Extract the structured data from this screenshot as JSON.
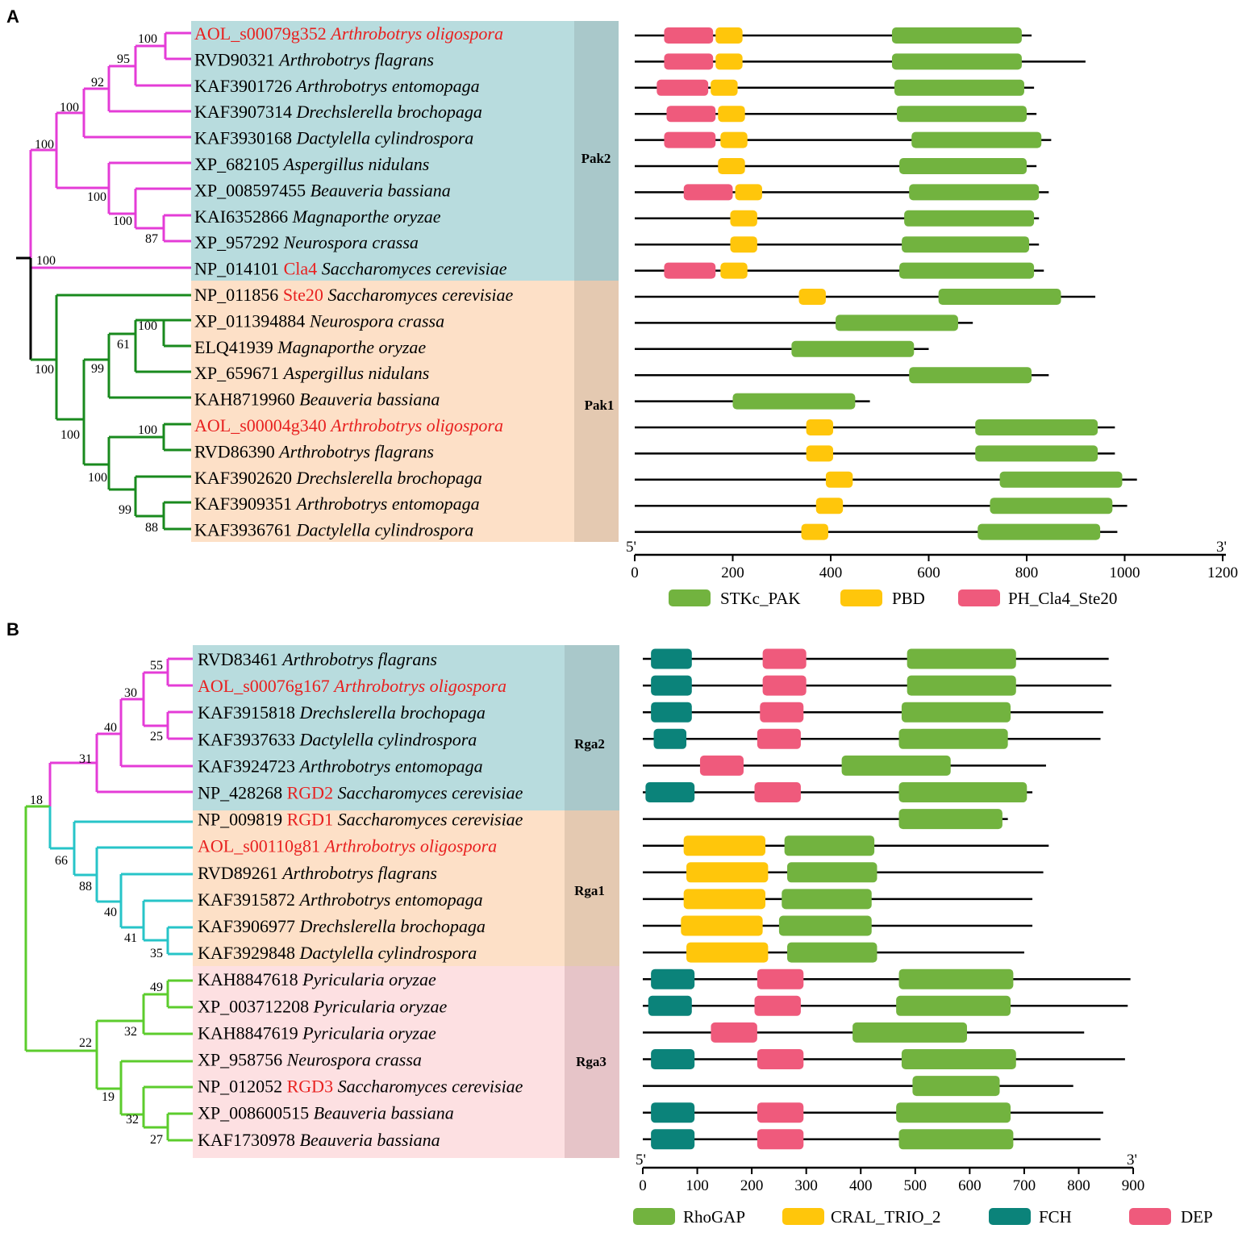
{
  "colors": {
    "STKc_PAK": "#72b33f",
    "PBD": "#ffc60b",
    "PH_Cla4_Ste20": "#ef5a7c",
    "RhoGAP": "#72b33f",
    "CRAL_TRIO_2": "#ffc60b",
    "FCH": "#0b837a",
    "DEP": "#ef5a7c",
    "clade_magenta": "#e43cd7",
    "clade_darkgreen": "#198a1e",
    "clade_cyan": "#27c4c8",
    "clade_lime": "#5ccc2d",
    "bg_teal": "#b8dcde",
    "bg_peach": "#fde0c7",
    "bg_pink": "#fde0e2"
  },
  "panelA": {
    "letter": "A",
    "groups": [
      "Pak2",
      "Pak1"
    ],
    "axis": {
      "start": "5'",
      "end": "3'",
      "min": 0,
      "max": 1200,
      "ticks": [
        0,
        200,
        400,
        600,
        800,
        1000,
        1200
      ]
    },
    "legend": [
      "STKc_PAK",
      "PBD",
      "PH_Cla4_Ste20"
    ],
    "bootstrap": [
      "100",
      "95",
      "92",
      "100",
      "100",
      "100",
      "100",
      "87",
      "100",
      "100",
      "61",
      "99",
      "100",
      "100",
      "100",
      "100",
      "99",
      "88"
    ],
    "proteins": [
      {
        "id": "AOL_s00079g352",
        "gene": "",
        "species": "Arthrobotrys oligospora",
        "red": true,
        "length": 810,
        "domains": [
          {
            "t": "PH_Cla4_Ste20",
            "s": 60,
            "e": 160
          },
          {
            "t": "PBD",
            "s": 165,
            "e": 220
          },
          {
            "t": "STKc_PAK",
            "s": 525,
            "e": 790
          }
        ]
      },
      {
        "id": "RVD90321",
        "gene": "",
        "species": "Arthrobotrys flagrans",
        "red": false,
        "length": 920,
        "domains": [
          {
            "t": "PH_Cla4_Ste20",
            "s": 60,
            "e": 160
          },
          {
            "t": "PBD",
            "s": 165,
            "e": 220
          },
          {
            "t": "STKc_PAK",
            "s": 525,
            "e": 790
          }
        ]
      },
      {
        "id": "KAF3901726",
        "gene": "",
        "species": "Arthrobotrys entomopaga",
        "red": false,
        "length": 815,
        "domains": [
          {
            "t": "PH_Cla4_Ste20",
            "s": 45,
            "e": 150
          },
          {
            "t": "PBD",
            "s": 155,
            "e": 210
          },
          {
            "t": "STKc_PAK",
            "s": 530,
            "e": 795
          }
        ]
      },
      {
        "id": "KAF3907314",
        "gene": "",
        "species": "Drechslerella brochopaga",
        "red": false,
        "length": 820,
        "domains": [
          {
            "t": "PH_Cla4_Ste20",
            "s": 65,
            "e": 165
          },
          {
            "t": "PBD",
            "s": 170,
            "e": 225
          },
          {
            "t": "STKc_PAK",
            "s": 535,
            "e": 800
          }
        ]
      },
      {
        "id": "KAF3930168",
        "gene": "",
        "species": "Dactylella cylindrospora",
        "red": false,
        "length": 850,
        "domains": [
          {
            "t": "PH_Cla4_Ste20",
            "s": 60,
            "e": 165
          },
          {
            "t": "PBD",
            "s": 175,
            "e": 230
          },
          {
            "t": "STKc_PAK",
            "s": 565,
            "e": 830
          }
        ]
      },
      {
        "id": "XP_682105",
        "gene": "",
        "species": "Aspergillus nidulans",
        "red": false,
        "length": 820,
        "domains": [
          {
            "t": "PBD",
            "s": 170,
            "e": 225
          },
          {
            "t": "STKc_PAK",
            "s": 540,
            "e": 800
          }
        ]
      },
      {
        "id": "XP_008597455",
        "gene": "",
        "species": "Beauveria bassiana",
        "red": false,
        "length": 845,
        "domains": [
          {
            "t": "PH_Cla4_Ste20",
            "s": 100,
            "e": 200
          },
          {
            "t": "PBD",
            "s": 205,
            "e": 260
          },
          {
            "t": "STKc_PAK",
            "s": 560,
            "e": 825
          }
        ]
      },
      {
        "id": "KAI6352866",
        "gene": "",
        "species": "Magnaporthe oryzae",
        "red": false,
        "length": 825,
        "domains": [
          {
            "t": "PBD",
            "s": 195,
            "e": 250
          },
          {
            "t": "STKc_PAK",
            "s": 550,
            "e": 815
          }
        ]
      },
      {
        "id": "XP_957292",
        "gene": "",
        "species": "Neurospora crassa",
        "red": false,
        "length": 825,
        "domains": [
          {
            "t": "PBD",
            "s": 195,
            "e": 250
          },
          {
            "t": "STKc_PAK",
            "s": 545,
            "e": 805
          }
        ]
      },
      {
        "id": "NP_014101",
        "gene": "Cla4",
        "species": "Saccharomyces cerevisiae",
        "red": false,
        "length": 835,
        "domains": [
          {
            "t": "PH_Cla4_Ste20",
            "s": 60,
            "e": 165
          },
          {
            "t": "PBD",
            "s": 175,
            "e": 230
          },
          {
            "t": "STKc_PAK",
            "s": 540,
            "e": 815
          }
        ]
      },
      {
        "id": "NP_011856",
        "gene": "Ste20",
        "species": "Saccharomyces cerevisiae",
        "red": false,
        "length": 940,
        "domains": [
          {
            "t": "PBD",
            "s": 335,
            "e": 390
          },
          {
            "t": "STKc_PAK",
            "s": 620,
            "e": 870
          }
        ]
      },
      {
        "id": "XP_011394884",
        "gene": "",
        "species": "Neurospora crassa",
        "red": false,
        "length": 690,
        "domains": [
          {
            "t": "STKc_PAK",
            "s": 410,
            "e": 660
          }
        ]
      },
      {
        "id": "ELQ41939",
        "gene": "",
        "species": "Magnaporthe oryzae",
        "red": false,
        "length": 600,
        "domains": [
          {
            "t": "STKc_PAK",
            "s": 320,
            "e": 570
          }
        ]
      },
      {
        "id": "XP_659671",
        "gene": "",
        "species": "Aspergillus nidulans",
        "red": false,
        "length": 845,
        "domains": [
          {
            "t": "STKc_PAK",
            "s": 560,
            "e": 810
          }
        ]
      },
      {
        "id": "KAH8719960",
        "gene": "",
        "species": "Beauveria bassiana",
        "red": false,
        "length": 480,
        "domains": [
          {
            "t": "STKc_PAK",
            "s": 200,
            "e": 450
          }
        ]
      },
      {
        "id": "AOL_s00004g340",
        "gene": "",
        "species": "Arthrobotrys oligospora",
        "red": true,
        "length": 980,
        "domains": [
          {
            "t": "PBD",
            "s": 350,
            "e": 405
          },
          {
            "t": "STKc_PAK",
            "s": 695,
            "e": 945
          }
        ]
      },
      {
        "id": "RVD86390",
        "gene": "",
        "species": "Arthrobotrys flagrans",
        "red": false,
        "length": 980,
        "domains": [
          {
            "t": "PBD",
            "s": 350,
            "e": 405
          },
          {
            "t": "STKc_PAK",
            "s": 695,
            "e": 945
          }
        ]
      },
      {
        "id": "KAF3902620",
        "gene": "",
        "species": "Drechslerella brochopaga",
        "red": false,
        "length": 1025,
        "domains": [
          {
            "t": "PBD",
            "s": 390,
            "e": 445
          },
          {
            "t": "STKc_PAK",
            "s": 745,
            "e": 995
          }
        ]
      },
      {
        "id": "KAF3909351",
        "gene": "",
        "species": "Arthrobotrys entomopaga",
        "red": false,
        "length": 1005,
        "domains": [
          {
            "t": "PBD",
            "s": 370,
            "e": 425
          },
          {
            "t": "STKc_PAK",
            "s": 725,
            "e": 975
          }
        ]
      },
      {
        "id": "KAF3936761",
        "gene": "",
        "species": "Dactylella cylindrospora",
        "red": false,
        "length": 985,
        "domains": [
          {
            "t": "PBD",
            "s": 340,
            "e": 395
          },
          {
            "t": "STKc_PAK",
            "s": 700,
            "e": 950
          }
        ]
      }
    ]
  },
  "panelB": {
    "letter": "B",
    "groups": [
      "Rga2",
      "Rga1",
      "Rga3"
    ],
    "axis": {
      "start": "5'",
      "end": "3'",
      "min": 0,
      "max": 900,
      "ticks": [
        0,
        100,
        200,
        300,
        400,
        500,
        600,
        700,
        800,
        900
      ]
    },
    "legend": [
      "RhoGAP",
      "CRAL_TRIO_2",
      "FCH",
      "DEP"
    ],
    "bootstrap": [
      "55",
      "30",
      "25",
      "40",
      "31",
      "18",
      "66",
      "88",
      "40",
      "41",
      "35",
      "49",
      "32",
      "22",
      "19",
      "32",
      "27"
    ],
    "proteins": [
      {
        "id": "RVD83461",
        "gene": "",
        "species": "Arthrobotrys flagrans",
        "red": false,
        "length": 855,
        "domains": [
          {
            "t": "FCH",
            "s": 15,
            "e": 90
          },
          {
            "t": "DEP",
            "s": 220,
            "e": 300
          },
          {
            "t": "RhoGAP",
            "s": 485,
            "e": 685
          }
        ]
      },
      {
        "id": "AOL_s00076g167",
        "gene": "",
        "species": "Arthrobotrys oligospora",
        "red": true,
        "length": 860,
        "domains": [
          {
            "t": "FCH",
            "s": 15,
            "e": 90
          },
          {
            "t": "DEP",
            "s": 220,
            "e": 300
          },
          {
            "t": "RhoGAP",
            "s": 485,
            "e": 685
          }
        ]
      },
      {
        "id": "KAF3915818",
        "gene": "",
        "species": "Drechslerella brochopaga",
        "red": false,
        "length": 845,
        "domains": [
          {
            "t": "FCH",
            "s": 15,
            "e": 90
          },
          {
            "t": "DEP",
            "s": 215,
            "e": 295
          },
          {
            "t": "RhoGAP",
            "s": 475,
            "e": 675
          }
        ]
      },
      {
        "id": "KAF3937633",
        "gene": "",
        "species": "Dactylella cylindrospora",
        "red": false,
        "length": 840,
        "domains": [
          {
            "t": "FCH",
            "s": 20,
            "e": 80
          },
          {
            "t": "DEP",
            "s": 210,
            "e": 290
          },
          {
            "t": "RhoGAP",
            "s": 470,
            "e": 670
          }
        ]
      },
      {
        "id": "KAF3924723",
        "gene": "",
        "species": "Arthrobotrys entomopaga",
        "red": false,
        "length": 740,
        "domains": [
          {
            "t": "DEP",
            "s": 105,
            "e": 185
          },
          {
            "t": "RhoGAP",
            "s": 365,
            "e": 565
          }
        ]
      },
      {
        "id": "NP_428268",
        "gene": "RGD2",
        "species": "Saccharomyces cerevisiae",
        "red": false,
        "length": 715,
        "domains": [
          {
            "t": "FCH",
            "s": 5,
            "e": 95
          },
          {
            "t": "DEP",
            "s": 205,
            "e": 290
          },
          {
            "t": "RhoGAP",
            "s": 470,
            "e": 705
          }
        ]
      },
      {
        "id": "NP_009819",
        "gene": "RGD1",
        "species": "Saccharomyces cerevisiae",
        "red": false,
        "length": 670,
        "domains": [
          {
            "t": "RhoGAP",
            "s": 470,
            "e": 660
          }
        ]
      },
      {
        "id": "AOL_s00110g81",
        "gene": "",
        "species": "Arthrobotrys oligospora",
        "red": true,
        "length": 745,
        "domains": [
          {
            "t": "CRAL_TRIO_2",
            "s": 75,
            "e": 225
          },
          {
            "t": "RhoGAP",
            "s": 260,
            "e": 425
          }
        ]
      },
      {
        "id": "RVD89261",
        "gene": "",
        "species": "Arthrobotrys flagrans",
        "red": false,
        "length": 735,
        "domains": [
          {
            "t": "CRAL_TRIO_2",
            "s": 80,
            "e": 230
          },
          {
            "t": "RhoGAP",
            "s": 265,
            "e": 430
          }
        ]
      },
      {
        "id": "KAF3915872",
        "gene": "",
        "species": "Arthrobotrys entomopaga",
        "red": false,
        "length": 715,
        "domains": [
          {
            "t": "CRAL_TRIO_2",
            "s": 75,
            "e": 225
          },
          {
            "t": "RhoGAP",
            "s": 255,
            "e": 420
          }
        ]
      },
      {
        "id": "KAF3906977",
        "gene": "",
        "species": "Drechslerella brochopaga",
        "red": false,
        "length": 715,
        "domains": [
          {
            "t": "CRAL_TRIO_2",
            "s": 70,
            "e": 220
          },
          {
            "t": "RhoGAP",
            "s": 250,
            "e": 420
          }
        ]
      },
      {
        "id": "KAF3929848",
        "gene": "",
        "species": "Dactylella cylindrospora",
        "red": false,
        "length": 700,
        "domains": [
          {
            "t": "CRAL_TRIO_2",
            "s": 80,
            "e": 230
          },
          {
            "t": "RhoGAP",
            "s": 265,
            "e": 430
          }
        ]
      },
      {
        "id": "KAH8847618",
        "gene": "",
        "species": "Pyricularia oryzae",
        "red": false,
        "length": 895,
        "domains": [
          {
            "t": "FCH",
            "s": 15,
            "e": 95
          },
          {
            "t": "DEP",
            "s": 210,
            "e": 295
          },
          {
            "t": "RhoGAP",
            "s": 470,
            "e": 680
          }
        ]
      },
      {
        "id": "XP_003712208",
        "gene": "",
        "species": "Pyricularia oryzae",
        "red": false,
        "length": 890,
        "domains": [
          {
            "t": "FCH",
            "s": 10,
            "e": 90
          },
          {
            "t": "DEP",
            "s": 205,
            "e": 290
          },
          {
            "t": "RhoGAP",
            "s": 465,
            "e": 675
          }
        ]
      },
      {
        "id": "KAH8847619",
        "gene": "",
        "species": "Pyricularia oryzae",
        "red": false,
        "length": 810,
        "domains": [
          {
            "t": "DEP",
            "s": 125,
            "e": 210
          },
          {
            "t": "RhoGAP",
            "s": 385,
            "e": 595
          }
        ]
      },
      {
        "id": "XP_958756",
        "gene": "",
        "species": "Neurospora crassa",
        "red": false,
        "length": 885,
        "domains": [
          {
            "t": "FCH",
            "s": 15,
            "e": 95
          },
          {
            "t": "DEP",
            "s": 210,
            "e": 295
          },
          {
            "t": "RhoGAP",
            "s": 475,
            "e": 685
          }
        ]
      },
      {
        "id": "NP_012052",
        "gene": "RGD3",
        "species": "Saccharomyces cerevisiae",
        "red": false,
        "length": 790,
        "domains": [
          {
            "t": "RhoGAP",
            "s": 495,
            "e": 655
          }
        ]
      },
      {
        "id": "XP_008600515",
        "gene": "",
        "species": "Beauveria bassiana",
        "red": false,
        "length": 845,
        "domains": [
          {
            "t": "FCH",
            "s": 15,
            "e": 95
          },
          {
            "t": "DEP",
            "s": 210,
            "e": 295
          },
          {
            "t": "RhoGAP",
            "s": 465,
            "e": 675
          }
        ]
      },
      {
        "id": "KAF1730978",
        "gene": "",
        "species": "Beauveria bassiana",
        "red": false,
        "length": 840,
        "domains": [
          {
            "t": "FCH",
            "s": 15,
            "e": 95
          },
          {
            "t": "DEP",
            "s": 210,
            "e": 295
          },
          {
            "t": "RhoGAP",
            "s": 470,
            "e": 680
          }
        ]
      }
    ]
  }
}
